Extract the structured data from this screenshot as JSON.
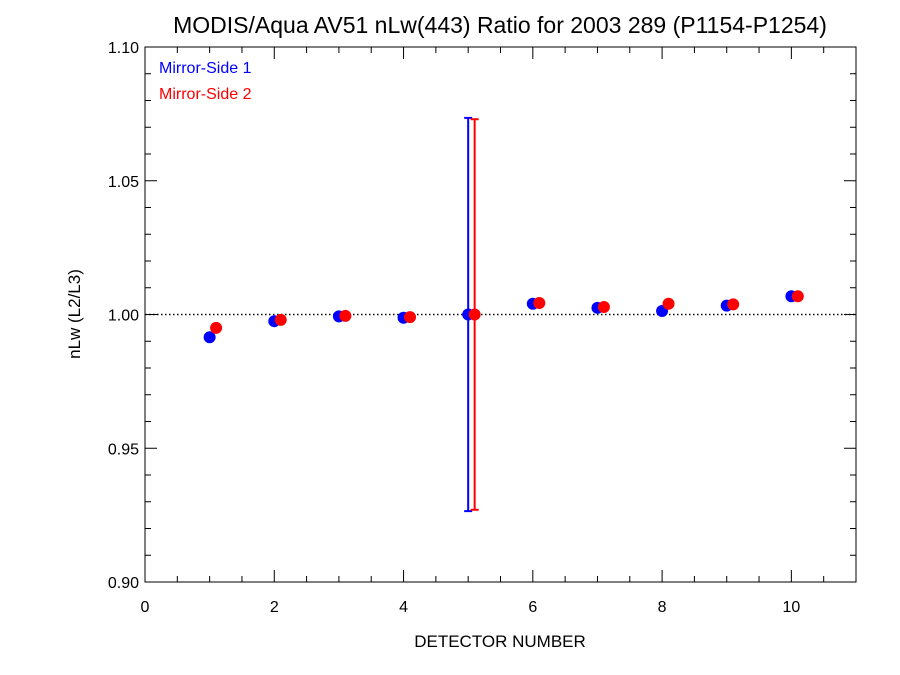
{
  "chart_data": {
    "type": "scatter",
    "title": "MODIS/Aqua AV51 nLw(443) Ratio for 2003 289 (P1154-P1254)",
    "xlabel": "DETECTOR NUMBER",
    "ylabel": "nLw (L2/L3)",
    "xlim": [
      0,
      11
    ],
    "ylim": [
      0.9,
      1.1
    ],
    "x_ticks": [
      0,
      2,
      4,
      6,
      8,
      10
    ],
    "x_tick_labels": [
      "0",
      "2",
      "4",
      "6",
      "8",
      "10"
    ],
    "y_ticks": [
      0.9,
      0.95,
      1.0,
      1.05,
      1.1
    ],
    "y_tick_labels": [
      "0.90",
      "0.95",
      "1.00",
      "1.05",
      "1.10"
    ],
    "reference_line": {
      "y": 1.0,
      "style": "dotted"
    },
    "legend_position": "top-left",
    "grid": false,
    "series": [
      {
        "name": "Mirror-Side 1",
        "color": "#0000ff",
        "x": [
          1,
          2,
          3,
          4,
          5,
          6,
          7,
          8,
          9,
          10
        ],
        "y": [
          0.9915,
          0.9975,
          0.9993,
          0.9988,
          1.0,
          1.004,
          1.0025,
          1.0013,
          1.0033,
          1.0068
        ],
        "error_bars": [
          {
            "x": 5,
            "low": 0.9265,
            "high": 1.0735
          }
        ]
      },
      {
        "name": "Mirror-Side 2",
        "color": "#ff0000",
        "x": [
          1.1,
          2.1,
          3.1,
          4.1,
          5.1,
          6.1,
          7.1,
          8.1,
          9.1,
          10.1
        ],
        "y": [
          0.995,
          0.998,
          0.9995,
          0.999,
          1.0,
          1.0043,
          1.0028,
          1.004,
          1.0038,
          1.0068
        ],
        "error_bars": [
          {
            "x": 5.1,
            "low": 0.927,
            "high": 1.073
          }
        ]
      }
    ]
  }
}
